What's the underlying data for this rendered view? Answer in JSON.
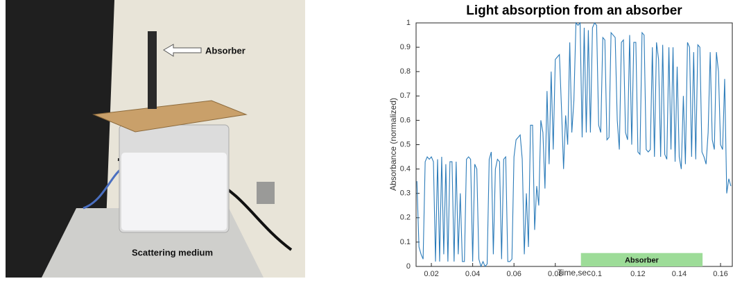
{
  "photo": {
    "labels": [
      "Absorber",
      "Scattering medium"
    ]
  },
  "chart_data": {
    "type": "line",
    "title": "Light absorption from an absorber",
    "xlabel": "Time,sec",
    "ylabel": "Absorbance (normalized)",
    "x": [
      0.013,
      0.014,
      0.015,
      0.016,
      0.017,
      0.018,
      0.019,
      0.02,
      0.021,
      0.022,
      0.023,
      0.024,
      0.025,
      0.026,
      0.027,
      0.028,
      0.029,
      0.03,
      0.031,
      0.032,
      0.033,
      0.034,
      0.035,
      0.036,
      0.037,
      0.038,
      0.039,
      0.04,
      0.041,
      0.042,
      0.043,
      0.044,
      0.045,
      0.046,
      0.047,
      0.048,
      0.049,
      0.05,
      0.051,
      0.052,
      0.053,
      0.054,
      0.055,
      0.056,
      0.057,
      0.058,
      0.059,
      0.06,
      0.061,
      0.062,
      0.063,
      0.064,
      0.065,
      0.066,
      0.067,
      0.068,
      0.069,
      0.07,
      0.071,
      0.072,
      0.073,
      0.074,
      0.075,
      0.076,
      0.077,
      0.078,
      0.079,
      0.08,
      0.081,
      0.082,
      0.083,
      0.084,
      0.085,
      0.086,
      0.087,
      0.088,
      0.089,
      0.09,
      0.091,
      0.092,
      0.093,
      0.094,
      0.095,
      0.096,
      0.097,
      0.098,
      0.099,
      0.1,
      0.101,
      0.102,
      0.103,
      0.104,
      0.105,
      0.106,
      0.107,
      0.108,
      0.109,
      0.11,
      0.111,
      0.112,
      0.113,
      0.114,
      0.115,
      0.116,
      0.117,
      0.118,
      0.119,
      0.12,
      0.121,
      0.122,
      0.123,
      0.124,
      0.125,
      0.126,
      0.127,
      0.128,
      0.129,
      0.13,
      0.131,
      0.132,
      0.133,
      0.134,
      0.135,
      0.136,
      0.137,
      0.138,
      0.139,
      0.14,
      0.141,
      0.142,
      0.143,
      0.144,
      0.145,
      0.146,
      0.147,
      0.148,
      0.149,
      0.15,
      0.151,
      0.152,
      0.153,
      0.154,
      0.155,
      0.156,
      0.157,
      0.158,
      0.159,
      0.16,
      0.161,
      0.162,
      0.163,
      0.164,
      0.165
    ],
    "series": [
      {
        "color": "#2b7bb9",
        "values": [
          0.35,
          0.08,
          0.05,
          0.03,
          0.43,
          0.45,
          0.44,
          0.45,
          0.43,
          0.02,
          0.44,
          0.02,
          0.45,
          0.05,
          0.42,
          0.02,
          0.43,
          0.43,
          0.02,
          0.43,
          0.05,
          0.3,
          0.02,
          0.02,
          0.44,
          0.45,
          0.44,
          0.02,
          0.42,
          0.4,
          0.03,
          0.0,
          0.02,
          0.0,
          0.01,
          0.44,
          0.47,
          0.05,
          0.4,
          0.44,
          0.43,
          0.03,
          0.44,
          0.45,
          0.02,
          0.02,
          0.03,
          0.45,
          0.52,
          0.53,
          0.54,
          0.44,
          0.05,
          0.3,
          0.08,
          0.58,
          0.58,
          0.15,
          0.33,
          0.25,
          0.6,
          0.55,
          0.32,
          0.72,
          0.42,
          0.8,
          0.48,
          0.85,
          0.86,
          0.87,
          0.65,
          0.4,
          0.62,
          0.5,
          0.92,
          0.55,
          0.68,
          1.0,
          0.99,
          1.0,
          0.53,
          0.98,
          0.55,
          0.97,
          0.55,
          0.98,
          1.0,
          0.99,
          0.58,
          0.55,
          0.94,
          0.93,
          0.52,
          0.53,
          0.96,
          0.95,
          0.94,
          0.6,
          0.48,
          0.92,
          0.93,
          0.55,
          0.52,
          0.95,
          0.5,
          0.92,
          0.92,
          0.47,
          0.46,
          0.96,
          0.95,
          0.48,
          0.47,
          0.48,
          0.9,
          0.45,
          0.92,
          0.85,
          0.45,
          0.91,
          0.46,
          0.44,
          0.9,
          0.48,
          0.9,
          0.43,
          0.82,
          0.45,
          0.4,
          0.7,
          0.42,
          0.92,
          0.9,
          0.45,
          0.88,
          0.44,
          0.91,
          0.9,
          0.47,
          0.45,
          0.42,
          0.55,
          0.88,
          0.52,
          0.48,
          0.88,
          0.8,
          0.5,
          0.48,
          0.77,
          0.3,
          0.36,
          0.33
        ]
      }
    ],
    "xlim": [
      0.0126,
      0.1657
    ],
    "ylim": [
      0,
      1
    ],
    "xticks": [
      0.02,
      0.04,
      0.06,
      0.08,
      0.1,
      0.12,
      0.14,
      0.16
    ],
    "yticks": [
      0,
      0.1,
      0.2,
      0.3,
      0.4,
      0.5,
      0.6,
      0.7,
      0.8,
      0.9,
      1
    ],
    "annotations": [
      {
        "text": "Absorber",
        "x": [
          0.0924,
          0.1513
        ],
        "y": [
          0,
          0.055
        ],
        "color": "#9ddc98"
      }
    ]
  }
}
